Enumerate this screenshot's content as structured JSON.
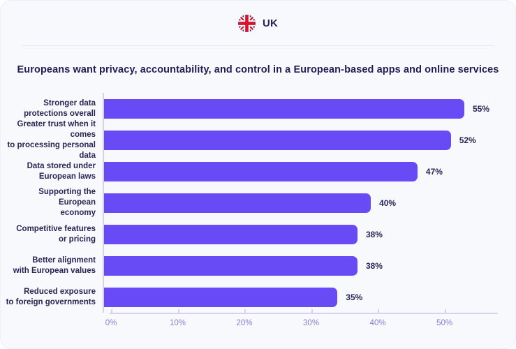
{
  "header": {
    "country_label": "UK",
    "flag_icon": "uk-flag-icon"
  },
  "title": "Europeans want privacy, accountability, and control in a European-based apps and online services",
  "chart_data": {
    "type": "bar",
    "orientation": "horizontal",
    "title": "Europeans want privacy, accountability, and control in a European-based apps and online services",
    "categories": [
      "Stronger data protections overall",
      "Greater trust when it comes to processing personal data",
      "Data stored under European laws",
      "Supporting the European economy",
      "Competitive features or pricing",
      "Better alignment with European values",
      "Reduced exposure to foreign governments"
    ],
    "category_lines": [
      [
        "Stronger data",
        "protections overall"
      ],
      [
        "Greater trust when it comes",
        "to processing personal data"
      ],
      [
        "Data stored under",
        "European laws"
      ],
      [
        "Supporting the European",
        "economy"
      ],
      [
        "Competitive features",
        "or pricing"
      ],
      [
        "Better alignment",
        "with European values"
      ],
      [
        "Reduced exposure",
        "to foreign governments"
      ]
    ],
    "values": [
      55,
      52,
      47,
      40,
      38,
      38,
      35
    ],
    "value_labels": [
      "55%",
      "52%",
      "47%",
      "40%",
      "38%",
      "38%",
      "35%"
    ],
    "x_ticks": [
      "0%",
      "10%",
      "20%",
      "30%",
      "40%",
      "50%"
    ],
    "x_tick_values": [
      0,
      10,
      20,
      30,
      40,
      50
    ],
    "xlim": [
      0,
      58
    ],
    "grid": false,
    "legend": false,
    "bar_color": "#694BF5",
    "axis_line_color": "#D8D0F2",
    "tick_label_color": "#8A7BD8",
    "label_color": "#2B2457"
  },
  "colors": {
    "card_background": "#F8F9FC",
    "page_background": "#FFFFFF",
    "divider": "#E7E4F6",
    "title_text": "#221C55",
    "flag_navy": "#283577",
    "flag_red": "#D5152E"
  }
}
